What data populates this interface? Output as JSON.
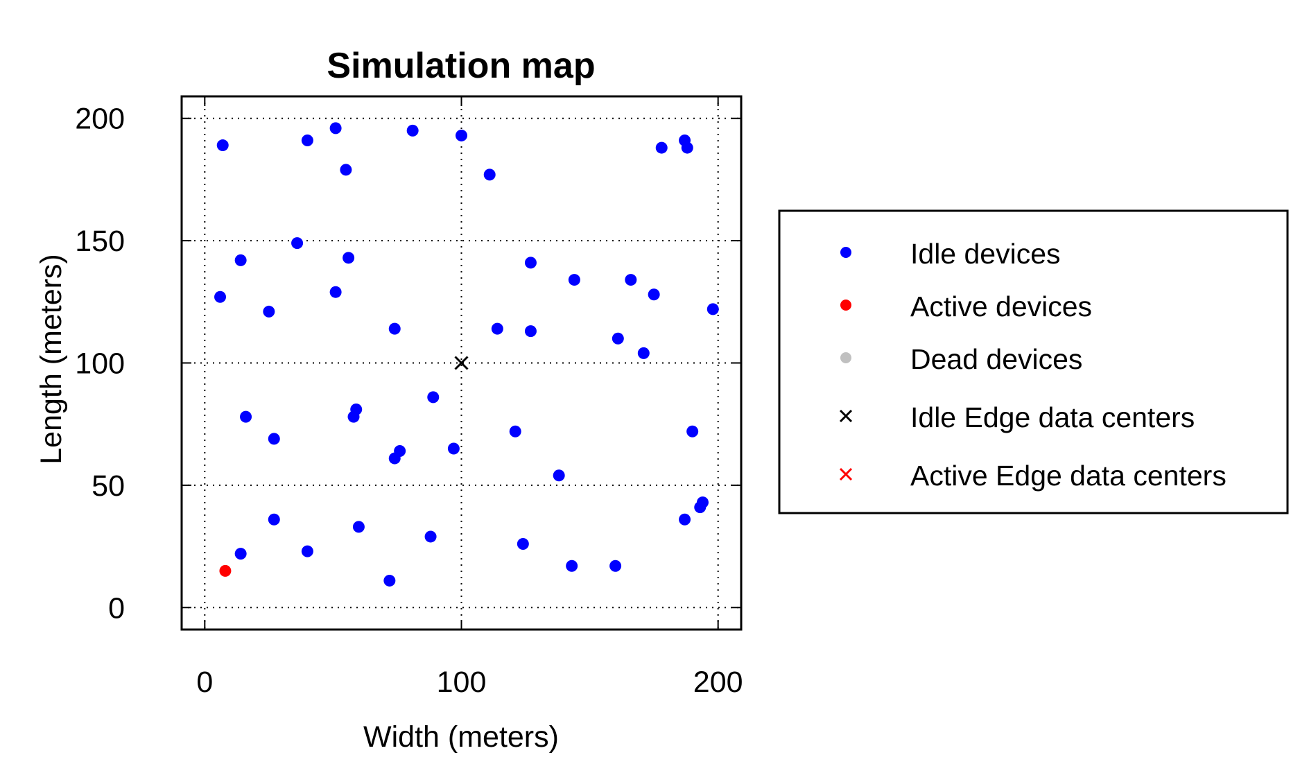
{
  "chart_data": {
    "type": "scatter",
    "title": "Simulation map",
    "xlabel": "Width (meters)",
    "ylabel": "Length (meters)",
    "xlim": [
      -9,
      209
    ],
    "ylim": [
      -9,
      209
    ],
    "xticks": [
      0,
      100,
      200
    ],
    "yticks": [
      0,
      50,
      100,
      150,
      200
    ],
    "xtick_labels": [
      "0",
      "100",
      "200"
    ],
    "ytick_labels": [
      "0",
      "50",
      "100",
      "150",
      "200"
    ],
    "grid": true,
    "legend_position": "right",
    "series": [
      {
        "name": "Idle devices",
        "marker": "dot",
        "color": "#0000ff",
        "points": [
          [
            7,
            189
          ],
          [
            40,
            191
          ],
          [
            51,
            196
          ],
          [
            81,
            195
          ],
          [
            100,
            193
          ],
          [
            55,
            179
          ],
          [
            111,
            177
          ],
          [
            178,
            188
          ],
          [
            187,
            191
          ],
          [
            188,
            188
          ],
          [
            14,
            142
          ],
          [
            36,
            149
          ],
          [
            56,
            143
          ],
          [
            6,
            127
          ],
          [
            51,
            129
          ],
          [
            25,
            121
          ],
          [
            74,
            114
          ],
          [
            114,
            114
          ],
          [
            127,
            141
          ],
          [
            144,
            134
          ],
          [
            166,
            134
          ],
          [
            175,
            128
          ],
          [
            198,
            122
          ],
          [
            127,
            113
          ],
          [
            161,
            110
          ],
          [
            171,
            104
          ],
          [
            16,
            78
          ],
          [
            27,
            69
          ],
          [
            59,
            81
          ],
          [
            58,
            78
          ],
          [
            89,
            86
          ],
          [
            76,
            64
          ],
          [
            74,
            61
          ],
          [
            97,
            65
          ],
          [
            121,
            72
          ],
          [
            190,
            72
          ],
          [
            138,
            54
          ],
          [
            27,
            36
          ],
          [
            60,
            33
          ],
          [
            40,
            23
          ],
          [
            14,
            22
          ],
          [
            88,
            29
          ],
          [
            72,
            11
          ],
          [
            124,
            26
          ],
          [
            143,
            17
          ],
          [
            160,
            17
          ],
          [
            187,
            36
          ],
          [
            193,
            41
          ],
          [
            194,
            43
          ]
        ]
      },
      {
        "name": "Active devices",
        "marker": "dot",
        "color": "#ff0000",
        "points": [
          [
            8,
            15
          ]
        ]
      },
      {
        "name": "Dead devices",
        "marker": "dot",
        "color": "#c0c0c0",
        "points": []
      },
      {
        "name": "Idle Edge data centers",
        "marker": "x",
        "color": "#000000",
        "points": [
          [
            100,
            100
          ]
        ]
      },
      {
        "name": "Active Edge data centers",
        "marker": "x",
        "color": "#ff0000",
        "points": []
      }
    ]
  }
}
